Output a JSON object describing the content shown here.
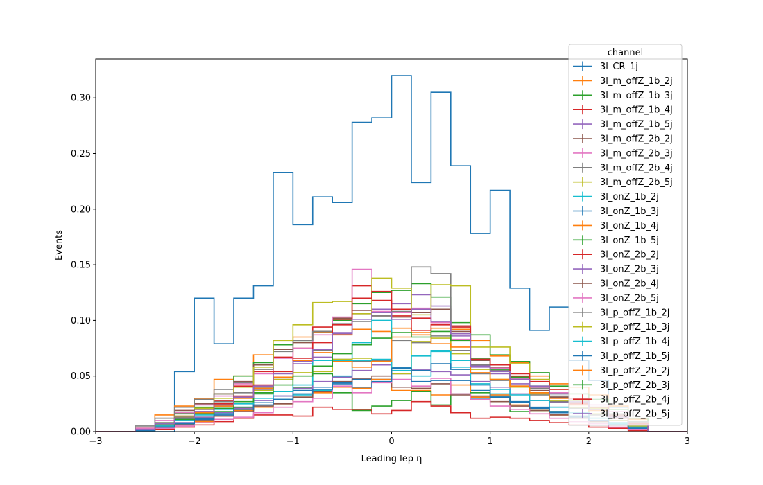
{
  "chart_data": {
    "type": "histogram-step",
    "xlabel": "Leading lep η",
    "ylabel": "Events",
    "xlim": [
      -3,
      3
    ],
    "ylim": [
      0,
      0.335
    ],
    "x_ticks": [
      -3,
      -2,
      -1,
      0,
      1,
      2,
      3
    ],
    "x_tick_labels": [
      "−3",
      "−2",
      "−1",
      "0",
      "1",
      "2",
      "3"
    ],
    "y_ticks": [
      0.0,
      0.05,
      0.1,
      0.15,
      0.2,
      0.25,
      0.3
    ],
    "y_tick_labels": [
      "0.00",
      "0.05",
      "0.10",
      "0.15",
      "0.20",
      "0.25",
      "0.30"
    ],
    "bin_edges": [
      -3.0,
      -2.8,
      -2.6,
      -2.4,
      -2.2,
      -2.0,
      -1.8,
      -1.6,
      -1.4,
      -1.2,
      -1.0,
      -0.8,
      -0.6,
      -0.4,
      -0.2,
      0.0,
      0.2,
      0.4,
      0.6,
      0.8,
      1.0,
      1.2,
      1.4,
      1.6,
      1.8,
      2.0,
      2.2,
      2.4,
      2.6,
      2.8,
      3.0
    ],
    "legend": {
      "title": "channel",
      "placement": "upper right"
    },
    "series": [
      {
        "name": "3l_CR_1j",
        "color": "#1f77b4",
        "values": [
          0,
          0,
          0,
          0,
          0.054,
          0.12,
          0.079,
          0.12,
          0.131,
          0.233,
          0.186,
          0.211,
          0.206,
          0.278,
          0.282,
          0.32,
          0.224,
          0.305,
          0.239,
          0.178,
          0.217,
          0.129,
          0.091,
          0.112,
          0.064,
          0.046,
          0.022,
          0.004,
          0,
          0
        ]
      },
      {
        "name": "3l_m_offZ_1b_2j",
        "color": "#ff7f0e",
        "values": [
          0,
          0,
          0.003,
          0.015,
          0.023,
          0.03,
          0.047,
          0.05,
          0.069,
          0.078,
          0.085,
          0.089,
          0.087,
          0.092,
          0.09,
          0.093,
          0.089,
          0.093,
          0.092,
          0.082,
          0.068,
          0.062,
          0.05,
          0.043,
          0.04,
          0.033,
          0.023,
          0.011,
          0,
          0
        ]
      },
      {
        "name": "3l_m_offZ_1b_3j",
        "color": "#2ca02c",
        "values": [
          0,
          0,
          0.002,
          0.008,
          0.016,
          0.022,
          0.034,
          0.05,
          0.062,
          0.078,
          0.082,
          0.09,
          0.1,
          0.115,
          0.125,
          0.127,
          0.133,
          0.121,
          0.098,
          0.087,
          0.069,
          0.063,
          0.053,
          0.041,
          0.034,
          0.029,
          0.02,
          0.012,
          0,
          0
        ]
      },
      {
        "name": "3l_m_offZ_1b_4j",
        "color": "#d62728",
        "values": [
          0,
          0,
          0.002,
          0.007,
          0.014,
          0.02,
          0.028,
          0.041,
          0.054,
          0.067,
          0.075,
          0.094,
          0.101,
          0.131,
          0.118,
          0.104,
          0.102,
          0.098,
          0.094,
          0.064,
          0.06,
          0.05,
          0.04,
          0.03,
          0.025,
          0.02,
          0.012,
          0.006,
          0,
          0
        ]
      },
      {
        "name": "3l_m_offZ_1b_5j",
        "color": "#9467bd",
        "values": [
          0,
          0,
          0.001,
          0.005,
          0.01,
          0.016,
          0.023,
          0.031,
          0.038,
          0.047,
          0.061,
          0.067,
          0.089,
          0.106,
          0.11,
          0.115,
          0.123,
          0.113,
          0.086,
          0.058,
          0.052,
          0.043,
          0.034,
          0.026,
          0.021,
          0.016,
          0.01,
          0.005,
          0,
          0
        ]
      },
      {
        "name": "3l_m_offZ_2b_2j",
        "color": "#8c564b",
        "values": [
          0,
          0,
          0.003,
          0.012,
          0.019,
          0.025,
          0.034,
          0.045,
          0.06,
          0.074,
          0.08,
          0.09,
          0.102,
          0.109,
          0.104,
          0.103,
          0.107,
          0.11,
          0.09,
          0.064,
          0.058,
          0.049,
          0.037,
          0.031,
          0.026,
          0.021,
          0.015,
          0.008,
          0,
          0
        ]
      },
      {
        "name": "3l_m_offZ_2b_3j",
        "color": "#e377c2",
        "values": [
          0,
          0,
          0.003,
          0.01,
          0.017,
          0.024,
          0.032,
          0.043,
          0.052,
          0.066,
          0.075,
          0.087,
          0.103,
          0.146,
          0.108,
          0.107,
          0.111,
          0.098,
          0.083,
          0.066,
          0.057,
          0.048,
          0.04,
          0.035,
          0.029,
          0.024,
          0.018,
          0.009,
          0,
          0
        ]
      },
      {
        "name": "3l_m_offZ_2b_4j",
        "color": "#7f7f7f",
        "values": [
          0,
          0,
          0.005,
          0.012,
          0.022,
          0.029,
          0.038,
          0.044,
          0.056,
          0.072,
          0.082,
          0.09,
          0.097,
          0.099,
          0.104,
          0.108,
          0.148,
          0.142,
          0.095,
          0.06,
          0.055,
          0.047,
          0.039,
          0.032,
          0.027,
          0.022,
          0.016,
          0.009,
          0,
          0
        ]
      },
      {
        "name": "3l_m_offZ_2b_5j",
        "color": "#bcbd22",
        "values": [
          0,
          0,
          0.002,
          0.008,
          0.014,
          0.021,
          0.03,
          0.04,
          0.058,
          0.082,
          0.096,
          0.116,
          0.117,
          0.106,
          0.138,
          0.129,
          0.105,
          0.132,
          0.131,
          0.076,
          0.076,
          0.061,
          0.047,
          0.038,
          0.028,
          0.021,
          0.013,
          0.007,
          0,
          0
        ]
      },
      {
        "name": "3l_onZ_1b_2j",
        "color": "#17becf",
        "values": [
          0,
          0,
          0.001,
          0.004,
          0.008,
          0.012,
          0.016,
          0.02,
          0.026,
          0.029,
          0.033,
          0.037,
          0.05,
          0.08,
          0.1,
          0.055,
          0.05,
          0.073,
          0.058,
          0.03,
          0.034,
          0.026,
          0.021,
          0.017,
          0.013,
          0.01,
          0.007,
          0.003,
          0,
          0
        ]
      },
      {
        "name": "3l_onZ_1b_3j",
        "color": "#1f77b4",
        "values": [
          0,
          0,
          0.001,
          0.004,
          0.008,
          0.012,
          0.017,
          0.022,
          0.026,
          0.032,
          0.037,
          0.04,
          0.043,
          0.047,
          0.047,
          0.058,
          0.055,
          0.061,
          0.056,
          0.037,
          0.032,
          0.027,
          0.021,
          0.017,
          0.013,
          0.01,
          0.006,
          0.003,
          0,
          0
        ]
      },
      {
        "name": "3l_onZ_1b_4j",
        "color": "#ff7f0e",
        "values": [
          0,
          0,
          0.001,
          0.003,
          0.006,
          0.009,
          0.014,
          0.019,
          0.022,
          0.025,
          0.031,
          0.035,
          0.04,
          0.039,
          0.047,
          0.037,
          0.037,
          0.033,
          0.042,
          0.031,
          0.033,
          0.024,
          0.019,
          0.015,
          0.012,
          0.009,
          0.006,
          0.002,
          0,
          0
        ]
      },
      {
        "name": "3l_onZ_1b_5j",
        "color": "#2ca02c",
        "values": [
          0,
          0,
          0.001,
          0.004,
          0.007,
          0.013,
          0.018,
          0.022,
          0.034,
          0.036,
          0.04,
          0.052,
          0.035,
          0.019,
          0.023,
          0.028,
          0.036,
          0.024,
          0.034,
          0.035,
          0.031,
          0.018,
          0.019,
          0.018,
          0.014,
          0.012,
          0.008,
          0.004,
          0,
          0
        ]
      },
      {
        "name": "3l_onZ_2b_2j",
        "color": "#d62728",
        "values": [
          0,
          0,
          0.001,
          0.002,
          0.004,
          0.006,
          0.009,
          0.012,
          0.015,
          0.015,
          0.014,
          0.022,
          0.02,
          0.02,
          0.016,
          0.019,
          0.027,
          0.023,
          0.017,
          0.012,
          0.013,
          0.012,
          0.01,
          0.008,
          0.006,
          0.004,
          0.003,
          0.001,
          0,
          0
        ]
      },
      {
        "name": "3l_onZ_2b_3j",
        "color": "#9467bd",
        "values": [
          0,
          0,
          0.002,
          0.005,
          0.008,
          0.013,
          0.017,
          0.021,
          0.028,
          0.032,
          0.039,
          0.045,
          0.049,
          0.055,
          0.06,
          0.052,
          0.056,
          0.054,
          0.051,
          0.045,
          0.04,
          0.034,
          0.028,
          0.022,
          0.017,
          0.012,
          0.008,
          0.004,
          0,
          0
        ]
      },
      {
        "name": "3l_onZ_2b_4j",
        "color": "#8c564b",
        "values": [
          0,
          0,
          0.001,
          0.004,
          0.006,
          0.01,
          0.014,
          0.018,
          0.023,
          0.025,
          0.031,
          0.036,
          0.045,
          0.048,
          0.05,
          0.04,
          0.039,
          0.043,
          0.033,
          0.032,
          0.027,
          0.023,
          0.019,
          0.015,
          0.012,
          0.009,
          0.006,
          0.003,
          0,
          0
        ]
      },
      {
        "name": "3l_onZ_2b_5j",
        "color": "#e377c2",
        "values": [
          0,
          0,
          0.001,
          0.003,
          0.005,
          0.008,
          0.011,
          0.013,
          0.017,
          0.022,
          0.027,
          0.03,
          0.041,
          0.035,
          0.044,
          0.047,
          0.041,
          0.048,
          0.034,
          0.029,
          0.023,
          0.02,
          0.016,
          0.012,
          0.009,
          0.007,
          0.004,
          0.002,
          0,
          0
        ]
      },
      {
        "name": "3l_p_offZ_1b_2j",
        "color": "#7f7f7f",
        "values": [
          0,
          0,
          0.002,
          0.008,
          0.013,
          0.02,
          0.027,
          0.035,
          0.04,
          0.049,
          0.064,
          0.073,
          0.065,
          0.063,
          0.064,
          0.082,
          0.08,
          0.086,
          0.073,
          0.052,
          0.046,
          0.041,
          0.033,
          0.027,
          0.021,
          0.015,
          0.01,
          0.005,
          0,
          0
        ]
      },
      {
        "name": "3l_p_offZ_1b_3j",
        "color": "#bcbd22",
        "values": [
          0,
          0,
          0.002,
          0.007,
          0.012,
          0.018,
          0.024,
          0.03,
          0.037,
          0.047,
          0.053,
          0.054,
          0.065,
          0.066,
          0.063,
          0.052,
          0.081,
          0.084,
          0.07,
          0.056,
          0.047,
          0.04,
          0.034,
          0.028,
          0.022,
          0.016,
          0.01,
          0.005,
          0,
          0
        ]
      },
      {
        "name": "3l_p_offZ_1b_4j",
        "color": "#17becf",
        "values": [
          0,
          0,
          0.001,
          0.005,
          0.01,
          0.015,
          0.02,
          0.025,
          0.03,
          0.036,
          0.042,
          0.064,
          0.064,
          0.064,
          0.065,
          0.057,
          0.068,
          0.072,
          0.064,
          0.043,
          0.038,
          0.033,
          0.028,
          0.022,
          0.017,
          0.012,
          0.008,
          0.004,
          0,
          0
        ]
      },
      {
        "name": "3l_p_offZ_1b_5j",
        "color": "#1f77b4",
        "values": [
          0,
          0,
          0.001,
          0.004,
          0.007,
          0.011,
          0.015,
          0.02,
          0.024,
          0.029,
          0.034,
          0.038,
          0.044,
          0.04,
          0.045,
          0.057,
          0.045,
          0.046,
          0.046,
          0.042,
          0.031,
          0.026,
          0.022,
          0.018,
          0.014,
          0.01,
          0.006,
          0.003,
          0,
          0
        ]
      },
      {
        "name": "3l_p_offZ_2b_2j",
        "color": "#ff7f0e",
        "values": [
          0,
          0,
          0.002,
          0.007,
          0.012,
          0.017,
          0.023,
          0.03,
          0.039,
          0.049,
          0.064,
          0.071,
          0.063,
          0.058,
          0.063,
          0.085,
          0.087,
          0.079,
          0.076,
          0.053,
          0.047,
          0.041,
          0.035,
          0.03,
          0.024,
          0.019,
          0.013,
          0.006,
          0,
          0
        ]
      },
      {
        "name": "3l_p_offZ_2b_3j",
        "color": "#2ca02c",
        "values": [
          0,
          0,
          0.002,
          0.006,
          0.011,
          0.016,
          0.021,
          0.027,
          0.035,
          0.042,
          0.05,
          0.059,
          0.07,
          0.078,
          0.084,
          0.089,
          0.085,
          0.09,
          0.082,
          0.066,
          0.056,
          0.049,
          0.041,
          0.034,
          0.027,
          0.02,
          0.013,
          0.006,
          0,
          0
        ]
      },
      {
        "name": "3l_p_offZ_2b_4j",
        "color": "#d62728",
        "values": [
          0,
          0,
          0.002,
          0.007,
          0.012,
          0.018,
          0.025,
          0.032,
          0.042,
          0.054,
          0.066,
          0.08,
          0.096,
          0.12,
          0.126,
          0.11,
          0.091,
          0.096,
          0.095,
          0.065,
          0.06,
          0.052,
          0.045,
          0.038,
          0.03,
          0.022,
          0.014,
          0.007,
          0,
          0
        ]
      },
      {
        "name": "3l_p_offZ_2b_5j",
        "color": "#9467bd",
        "values": [
          0,
          0,
          0.002,
          0.007,
          0.012,
          0.018,
          0.024,
          0.031,
          0.041,
          0.052,
          0.063,
          0.074,
          0.088,
          0.101,
          0.107,
          0.101,
          0.11,
          0.099,
          0.088,
          0.059,
          0.054,
          0.047,
          0.041,
          0.034,
          0.027,
          0.02,
          0.013,
          0.006,
          0,
          0
        ]
      }
    ]
  }
}
